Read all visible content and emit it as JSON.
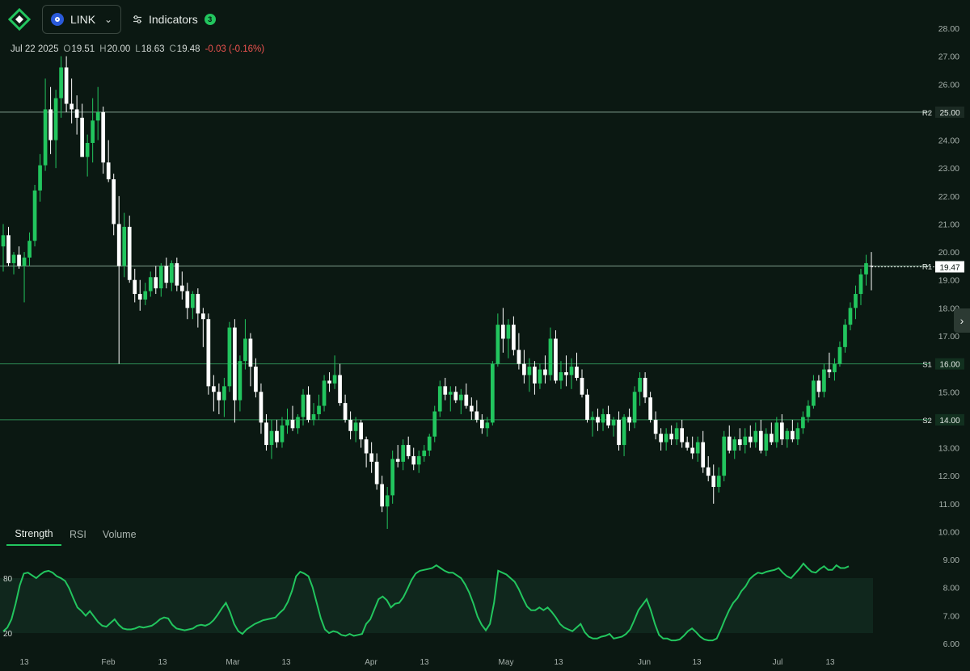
{
  "app": {
    "symbol": "LINK",
    "indicators_label": "Indicators",
    "indicators_count": "3"
  },
  "ohlc": {
    "date": "Jul 22 2025",
    "open_label": "O",
    "open": "19.51",
    "high_label": "H",
    "high": "20.00",
    "low_label": "L",
    "low": "18.63",
    "close_label": "C",
    "close": "19.48",
    "change": "-0.03 (-0.16%)"
  },
  "tabs": [
    {
      "label": "Strength",
      "active": true
    },
    {
      "label": "RSI",
      "active": false
    },
    {
      "label": "Volume",
      "active": false
    }
  ],
  "colors": {
    "background": "#0b1812",
    "up": "#22c55e",
    "down": "#ffffff",
    "level_line": "#2e8a55",
    "strength_line": "#22c55e",
    "change_negative": "#ef5350"
  },
  "icons": [
    "logo-icon",
    "link-coin-icon",
    "chevron-down-icon",
    "sliders-icon",
    "chevron-right-icon"
  ],
  "chart_data": {
    "type": "candlestick",
    "y_axis": {
      "ylim": [
        6,
        28
      ],
      "ticks": [
        "6.00",
        "7.00",
        "8.00",
        "9.00",
        "10.00",
        "11.00",
        "12.00",
        "13.00",
        "14.00",
        "15.00",
        "16.00",
        "17.00",
        "18.00",
        "19.00",
        "20.00",
        "21.00",
        "22.00",
        "23.00",
        "24.00",
        "25.00",
        "26.00",
        "27.00",
        "28.00"
      ]
    },
    "x_axis": {
      "labels": [
        "13",
        "Feb",
        "13",
        "Mar",
        "13",
        "Apr",
        "13",
        "May",
        "13",
        "Jun",
        "13",
        "Jul",
        "13"
      ]
    },
    "levels": [
      {
        "name": "R2",
        "value": "25.00"
      },
      {
        "name": "R1",
        "value": "19.50"
      },
      {
        "name": "S1",
        "value": "16.00"
      },
      {
        "name": "S2",
        "value": "14.00"
      }
    ],
    "last_price": "19.47",
    "candles": [
      [
        20.2,
        21.0,
        19.3,
        20.6
      ],
      [
        20.6,
        20.9,
        19.5,
        19.6
      ],
      [
        19.6,
        20.0,
        19.2,
        19.9
      ],
      [
        19.9,
        20.2,
        19.4,
        19.5
      ],
      [
        19.5,
        20.0,
        18.2,
        19.8
      ],
      [
        19.8,
        20.7,
        19.5,
        20.4
      ],
      [
        20.4,
        22.4,
        20.2,
        22.2
      ],
      [
        22.2,
        23.5,
        21.8,
        23.1
      ],
      [
        23.1,
        26.2,
        22.9,
        25.1
      ],
      [
        25.1,
        25.9,
        23.5,
        24.0
      ],
      [
        24.0,
        25.8,
        23.0,
        25.5
      ],
      [
        25.5,
        27.0,
        24.8,
        26.6
      ],
      [
        26.6,
        27.0,
        25.0,
        25.3
      ],
      [
        25.3,
        26.2,
        24.6,
        25.1
      ],
      [
        25.1,
        25.6,
        24.2,
        24.8
      ],
      [
        24.8,
        25.3,
        23.4,
        23.4
      ],
      [
        23.4,
        24.2,
        22.7,
        23.9
      ],
      [
        23.9,
        25.5,
        23.2,
        24.7
      ],
      [
        24.7,
        25.9,
        24.0,
        25.0
      ],
      [
        25.0,
        25.2,
        22.8,
        23.2
      ],
      [
        23.2,
        24.0,
        22.5,
        22.6
      ],
      [
        22.6,
        22.8,
        20.6,
        21.0
      ],
      [
        21.0,
        22.0,
        16.0,
        19.5
      ],
      [
        19.5,
        21.4,
        19.1,
        20.9
      ],
      [
        20.9,
        21.3,
        18.9,
        19.0
      ],
      [
        19.0,
        19.4,
        18.2,
        18.5
      ],
      [
        18.5,
        19.0,
        17.9,
        18.3
      ],
      [
        18.3,
        18.9,
        18.1,
        18.6
      ],
      [
        18.6,
        19.3,
        18.4,
        19.1
      ],
      [
        19.1,
        19.5,
        18.5,
        18.7
      ],
      [
        18.7,
        19.6,
        18.4,
        19.5
      ],
      [
        19.5,
        19.8,
        18.7,
        18.9
      ],
      [
        18.9,
        19.7,
        18.6,
        19.6
      ],
      [
        19.6,
        19.8,
        18.6,
        18.8
      ],
      [
        18.8,
        19.3,
        18.3,
        18.6
      ],
      [
        18.6,
        18.9,
        17.6,
        18.0
      ],
      [
        18.0,
        18.6,
        17.6,
        18.5
      ],
      [
        18.5,
        18.7,
        17.3,
        17.8
      ],
      [
        17.8,
        18.0,
        16.6,
        17.6
      ],
      [
        17.6,
        17.8,
        14.9,
        15.2
      ],
      [
        15.2,
        15.6,
        14.3,
        15.0
      ],
      [
        15.0,
        15.3,
        14.2,
        14.7
      ],
      [
        14.7,
        15.5,
        14.1,
        15.2
      ],
      [
        15.2,
        17.5,
        15.0,
        17.3
      ],
      [
        17.3,
        17.6,
        13.9,
        14.7
      ],
      [
        14.7,
        16.3,
        14.3,
        16.1
      ],
      [
        16.1,
        17.6,
        15.8,
        16.9
      ],
      [
        16.9,
        17.1,
        15.2,
        15.9
      ],
      [
        15.9,
        16.2,
        14.8,
        15.0
      ],
      [
        15.0,
        15.3,
        13.5,
        13.9
      ],
      [
        13.9,
        14.2,
        12.9,
        13.1
      ],
      [
        13.1,
        14.0,
        12.6,
        13.6
      ],
      [
        13.6,
        14.0,
        13.0,
        13.2
      ],
      [
        13.2,
        14.1,
        13.0,
        13.8
      ],
      [
        13.8,
        14.4,
        13.5,
        14.0
      ],
      [
        14.0,
        14.5,
        13.6,
        13.7
      ],
      [
        13.7,
        14.2,
        13.5,
        14.1
      ],
      [
        14.1,
        15.1,
        13.8,
        14.9
      ],
      [
        14.9,
        15.2,
        13.9,
        14.0
      ],
      [
        14.0,
        14.6,
        13.8,
        14.2
      ],
      [
        14.2,
        14.9,
        14.0,
        14.5
      ],
      [
        14.5,
        15.6,
        14.3,
        15.4
      ],
      [
        15.4,
        15.7,
        15.0,
        15.3
      ],
      [
        15.3,
        16.3,
        15.1,
        15.6
      ],
      [
        15.6,
        16.0,
        14.5,
        14.6
      ],
      [
        14.6,
        14.9,
        13.9,
        14.0
      ],
      [
        14.0,
        14.3,
        13.3,
        13.6
      ],
      [
        13.6,
        14.1,
        13.2,
        13.9
      ],
      [
        13.9,
        14.0,
        13.0,
        13.3
      ],
      [
        13.3,
        13.4,
        12.3,
        12.8
      ],
      [
        12.8,
        13.2,
        12.1,
        12.5
      ],
      [
        12.5,
        12.8,
        11.5,
        11.7
      ],
      [
        11.7,
        12.0,
        10.7,
        10.9
      ],
      [
        10.9,
        11.6,
        10.1,
        11.3
      ],
      [
        11.3,
        12.9,
        11.0,
        12.6
      ],
      [
        12.6,
        13.1,
        12.3,
        12.5
      ],
      [
        12.5,
        13.3,
        12.2,
        13.1
      ],
      [
        13.1,
        13.4,
        12.6,
        12.7
      ],
      [
        12.7,
        13.0,
        12.2,
        12.4
      ],
      [
        12.4,
        12.9,
        12.1,
        12.7
      ],
      [
        12.7,
        13.1,
        12.5,
        12.9
      ],
      [
        12.9,
        13.5,
        12.7,
        13.4
      ],
      [
        13.4,
        14.5,
        13.2,
        14.3
      ],
      [
        14.3,
        15.4,
        14.1,
        15.2
      ],
      [
        15.2,
        15.5,
        14.7,
        14.9
      ],
      [
        14.9,
        15.2,
        14.3,
        15.0
      ],
      [
        15.0,
        15.2,
        14.6,
        14.7
      ],
      [
        14.7,
        15.1,
        14.2,
        14.9
      ],
      [
        14.9,
        15.3,
        14.4,
        14.5
      ],
      [
        14.5,
        14.8,
        14.0,
        14.3
      ],
      [
        14.3,
        14.7,
        13.9,
        14.0
      ],
      [
        14.0,
        14.2,
        13.5,
        13.7
      ],
      [
        13.7,
        14.1,
        13.4,
        13.9
      ],
      [
        13.9,
        16.1,
        13.8,
        16.0
      ],
      [
        16.0,
        17.8,
        15.9,
        17.4
      ],
      [
        17.4,
        18.0,
        16.4,
        16.9
      ],
      [
        16.9,
        17.6,
        16.2,
        17.4
      ],
      [
        17.4,
        17.7,
        16.3,
        16.5
      ],
      [
        16.5,
        17.1,
        15.8,
        16.0
      ],
      [
        16.0,
        16.5,
        15.3,
        15.6
      ],
      [
        15.6,
        16.2,
        15.0,
        15.9
      ],
      [
        15.9,
        16.1,
        14.9,
        15.3
      ],
      [
        15.3,
        16.0,
        15.1,
        15.8
      ],
      [
        15.8,
        16.3,
        15.3,
        15.6
      ],
      [
        15.6,
        17.3,
        15.4,
        16.9
      ],
      [
        16.9,
        17.2,
        15.3,
        15.4
      ],
      [
        15.4,
        16.1,
        15.1,
        15.7
      ],
      [
        15.7,
        16.3,
        15.2,
        15.6
      ],
      [
        15.6,
        16.2,
        15.1,
        15.9
      ],
      [
        15.9,
        16.4,
        15.4,
        15.5
      ],
      [
        15.5,
        15.8,
        14.8,
        14.9
      ],
      [
        14.9,
        15.1,
        13.9,
        14.0
      ],
      [
        14.0,
        14.3,
        13.4,
        14.1
      ],
      [
        14.1,
        14.4,
        13.6,
        13.9
      ],
      [
        13.9,
        14.4,
        13.6,
        14.2
      ],
      [
        14.2,
        14.5,
        13.7,
        13.8
      ],
      [
        13.8,
        14.1,
        13.4,
        14.0
      ],
      [
        14.0,
        14.3,
        12.9,
        13.1
      ],
      [
        13.1,
        14.2,
        12.7,
        14.1
      ],
      [
        14.1,
        14.4,
        13.6,
        13.9
      ],
      [
        13.9,
        15.2,
        13.7,
        15.0
      ],
      [
        15.0,
        15.7,
        14.5,
        15.5
      ],
      [
        15.5,
        15.7,
        14.6,
        14.8
      ],
      [
        14.8,
        15.0,
        13.9,
        14.0
      ],
      [
        14.0,
        14.3,
        13.3,
        13.5
      ],
      [
        13.5,
        13.7,
        12.9,
        13.2
      ],
      [
        13.2,
        13.7,
        12.9,
        13.5
      ],
      [
        13.5,
        13.8,
        13.1,
        13.3
      ],
      [
        13.3,
        13.9,
        13.1,
        13.7
      ],
      [
        13.7,
        14.0,
        13.0,
        13.2
      ],
      [
        13.2,
        13.4,
        12.9,
        13.0
      ],
      [
        13.0,
        13.4,
        12.6,
        12.8
      ],
      [
        12.8,
        13.4,
        12.5,
        13.2
      ],
      [
        13.2,
        13.6,
        12.1,
        12.3
      ],
      [
        12.3,
        12.7,
        11.8,
        12.0
      ],
      [
        12.0,
        12.4,
        11.0,
        11.6
      ],
      [
        11.6,
        12.3,
        11.4,
        12.0
      ],
      [
        12.0,
        13.6,
        11.8,
        13.4
      ],
      [
        13.4,
        13.8,
        12.8,
        12.9
      ],
      [
        12.9,
        13.4,
        12.6,
        13.3
      ],
      [
        13.3,
        13.7,
        12.9,
        13.1
      ],
      [
        13.1,
        13.7,
        12.8,
        13.4
      ],
      [
        13.4,
        13.8,
        13.0,
        13.2
      ],
      [
        13.2,
        13.9,
        13.0,
        13.6
      ],
      [
        13.6,
        14.0,
        12.8,
        12.9
      ],
      [
        12.9,
        13.7,
        12.7,
        13.5
      ],
      [
        13.5,
        13.9,
        13.1,
        13.2
      ],
      [
        13.2,
        14.1,
        13.0,
        13.9
      ],
      [
        13.9,
        14.2,
        13.1,
        13.3
      ],
      [
        13.3,
        13.7,
        13.0,
        13.6
      ],
      [
        13.6,
        14.0,
        13.2,
        13.3
      ],
      [
        13.3,
        13.9,
        13.1,
        13.7
      ],
      [
        13.7,
        14.3,
        13.5,
        14.1
      ],
      [
        14.1,
        14.7,
        13.9,
        14.5
      ],
      [
        14.5,
        15.6,
        14.4,
        15.4
      ],
      [
        15.4,
        15.6,
        14.8,
        15.0
      ],
      [
        15.0,
        16.0,
        14.8,
        15.8
      ],
      [
        15.8,
        16.4,
        15.5,
        15.7
      ],
      [
        15.7,
        16.2,
        15.4,
        16.0
      ],
      [
        16.0,
        16.8,
        15.9,
        16.6
      ],
      [
        16.6,
        17.6,
        16.4,
        17.4
      ],
      [
        17.4,
        18.2,
        17.2,
        18.0
      ],
      [
        18.0,
        18.8,
        17.6,
        18.5
      ],
      [
        18.5,
        19.4,
        18.1,
        19.2
      ],
      [
        19.2,
        19.9,
        18.8,
        19.6
      ],
      [
        19.51,
        20.0,
        18.63,
        19.48
      ]
    ],
    "strength_panel": {
      "label_high": "80",
      "label_low": "20",
      "series": [
        22,
        26,
        35,
        52,
        72,
        85,
        86,
        83,
        80,
        84,
        87,
        88,
        86,
        82,
        80,
        77,
        69,
        58,
        48,
        44,
        39,
        44,
        38,
        32,
        28,
        27,
        31,
        35,
        29,
        25,
        24,
        24,
        25,
        27,
        26,
        27,
        28,
        31,
        35,
        37,
        36,
        29,
        25,
        24,
        23,
        24,
        25,
        28,
        29,
        28,
        30,
        34,
        40,
        47,
        53,
        43,
        30,
        22,
        19,
        24,
        27,
        30,
        32,
        34,
        35,
        36,
        37,
        42,
        46,
        54,
        66,
        82,
        87,
        85,
        82,
        70,
        53,
        36,
        24,
        20,
        22,
        21,
        18,
        17,
        19,
        17,
        18,
        19,
        30,
        35,
        46,
        57,
        60,
        56,
        48,
        52,
        53,
        59,
        68,
        78,
        85,
        88,
        89,
        90,
        91,
        94,
        91,
        88,
        86,
        86,
        83,
        80,
        73,
        64,
        52,
        38,
        29,
        23,
        30,
        53,
        88,
        86,
        84,
        80,
        76,
        68,
        58,
        49,
        45,
        45,
        48,
        45,
        48,
        43,
        37,
        30,
        26,
        24,
        22,
        26,
        30,
        21,
        16,
        14,
        14,
        16,
        17,
        19,
        14,
        15,
        16,
        19,
        24,
        34,
        45,
        51,
        57,
        45,
        30,
        18,
        14,
        14,
        12,
        12,
        13,
        17,
        22,
        25,
        21,
        16,
        13,
        12,
        12,
        14,
        24,
        35,
        45,
        53,
        58,
        66,
        71,
        79,
        83,
        86,
        85,
        87,
        88,
        89,
        91,
        86,
        82,
        80,
        85,
        90,
        96,
        91,
        87,
        86,
        90,
        93,
        89,
        89,
        94,
        91,
        91,
        93
      ]
    }
  }
}
